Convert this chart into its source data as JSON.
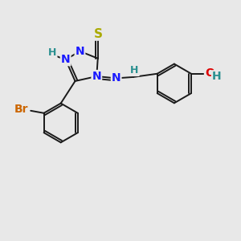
{
  "background_color": "#e8e8e8",
  "bond_color": "#1a1a1a",
  "N_color": "#1a1aff",
  "S_color": "#aaaa00",
  "Br_color": "#cc6600",
  "O_color": "#dd0000",
  "H_color": "#2a9090",
  "font_size_atom": 10,
  "font_size_H": 9,
  "lw": 1.4,
  "figsize": [
    3.0,
    3.0
  ],
  "dpi": 100,
  "xlim": [
    0,
    10
  ],
  "ylim": [
    0,
    10
  ]
}
